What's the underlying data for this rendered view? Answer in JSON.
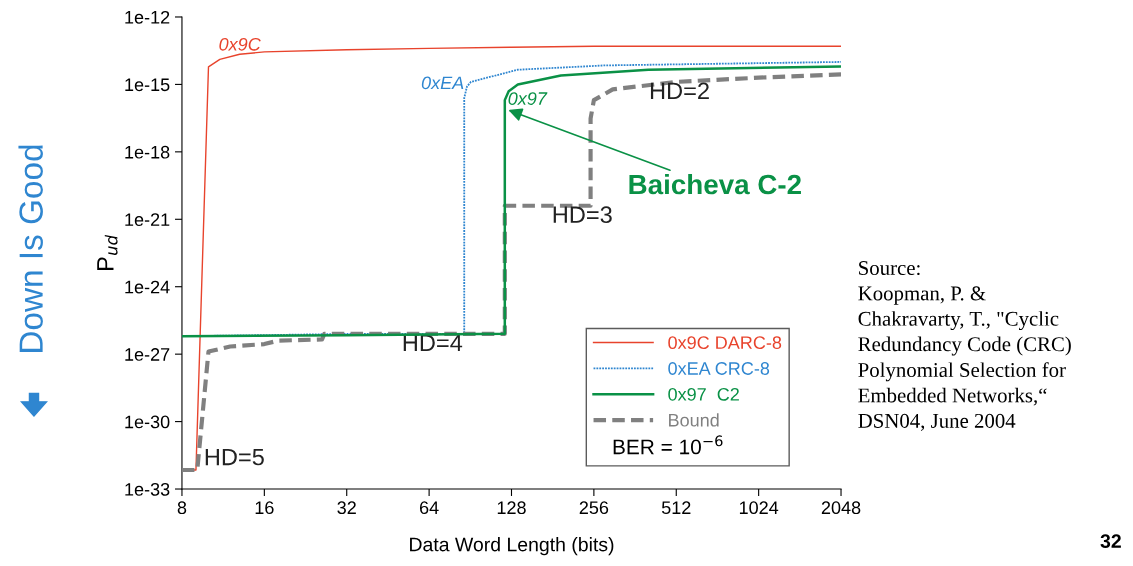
{
  "chart_data": {
    "type": "line",
    "xlabel": "Data Word Length (bits)",
    "ylabel": "P$_{ud}$",
    "log": "xy",
    "xlim": [
      8,
      2048
    ],
    "ylim": [
      1e-33,
      1e-12
    ],
    "xticks": [
      8,
      16,
      32,
      64,
      128,
      256,
      512,
      1024,
      2048
    ],
    "yticks": [
      {
        "value": 1e-12,
        "label": "1e-12"
      },
      {
        "value": 1e-15,
        "label": "1e-15"
      },
      {
        "value": 1e-18,
        "label": "1e-18"
      },
      {
        "value": 1e-21,
        "label": "1e-21"
      },
      {
        "value": 1e-24,
        "label": "1e-24"
      },
      {
        "value": 1e-27,
        "label": "1e-27"
      },
      {
        "value": 1e-30,
        "label": "1e-30"
      },
      {
        "value": 1e-33,
        "label": "1e-33"
      }
    ],
    "grid": false,
    "legend": "bottom right",
    "series": [
      {
        "name": "0x9C DARC-8",
        "color": "#e8432c",
        "line_style": "solid",
        "x": [
          8,
          9,
          10,
          11,
          13,
          16,
          32,
          64,
          128,
          256,
          2048
        ],
        "values": [
          7e-33,
          7e-33,
          6e-15,
          1.3e-14,
          2.2e-14,
          2.8e-14,
          3.5e-14,
          4e-14,
          4.5e-14,
          5e-14,
          5e-14
        ]
      },
      {
        "name": "0xEA CRC-8",
        "color": "#2f86d0",
        "line_style": "dotted",
        "x": [
          8,
          16,
          32,
          86,
          86,
          88,
          91,
          135,
          280,
          2048
        ],
        "values": [
          6.3e-27,
          7e-27,
          8e-27,
          8e-27,
          2.5e-16,
          8e-16,
          1.3e-15,
          4.5e-15,
          7e-15,
          1e-14
        ]
      },
      {
        "name": "0x97  C2",
        "color": "#0a9146",
        "line_style": "solid",
        "x": [
          8,
          32,
          121,
          121,
          125,
          135,
          194,
          405,
          2048
        ],
        "values": [
          6.3e-27,
          7e-27,
          8e-27,
          2e-16,
          5e-16,
          1e-15,
          2.5e-15,
          4.5e-15,
          6.3e-15
        ]
      },
      {
        "name": "Bound",
        "color": "#808080",
        "line_style": "dashed",
        "x": [
          8,
          9.1,
          10,
          12,
          16,
          18,
          26,
          26.5,
          121,
          121,
          249,
          249,
          256,
          300,
          512,
          1024,
          2048
        ],
        "values": [
          7e-33,
          7e-33,
          1.3e-27,
          2.2e-27,
          2.8e-27,
          4e-27,
          4.5e-27,
          8e-27,
          8e-27,
          4e-21,
          4e-21,
          3e-17,
          2e-16,
          6e-16,
          1.3e-15,
          2e-15,
          2.8e-15
        ]
      }
    ],
    "annotations": [
      {
        "text": "0x9C",
        "x": 13,
        "y": 2.2e-14
      },
      {
        "text": "0xEA",
        "x": 86,
        "y": 1e-15
      },
      {
        "text": "0x97",
        "x": 124,
        "y": 2e-16
      },
      {
        "text": "Baicheva C-2",
        "x": 122,
        "y": 8e-17
      },
      {
        "text": "HD=2",
        "x": 512,
        "y": 1.3e-15
      },
      {
        "text": "HD=3",
        "x": 170,
        "y": 4e-21
      },
      {
        "text": "HD=4",
        "x": 85,
        "y": 8e-27
      },
      {
        "text": "HD=5",
        "x": 9.1,
        "y": 7e-33
      },
      "BER = 10$^{−6}$",
      "Down Is Good",
      "Source:\nKoopman, P. &\nChakravarty, T., \"Cyclic\nRedundancy Code (CRC)\nPolynomial Selection for\nEmbedded Networks,“\nDSN04, June 2004",
      "32"
    ]
  }
}
